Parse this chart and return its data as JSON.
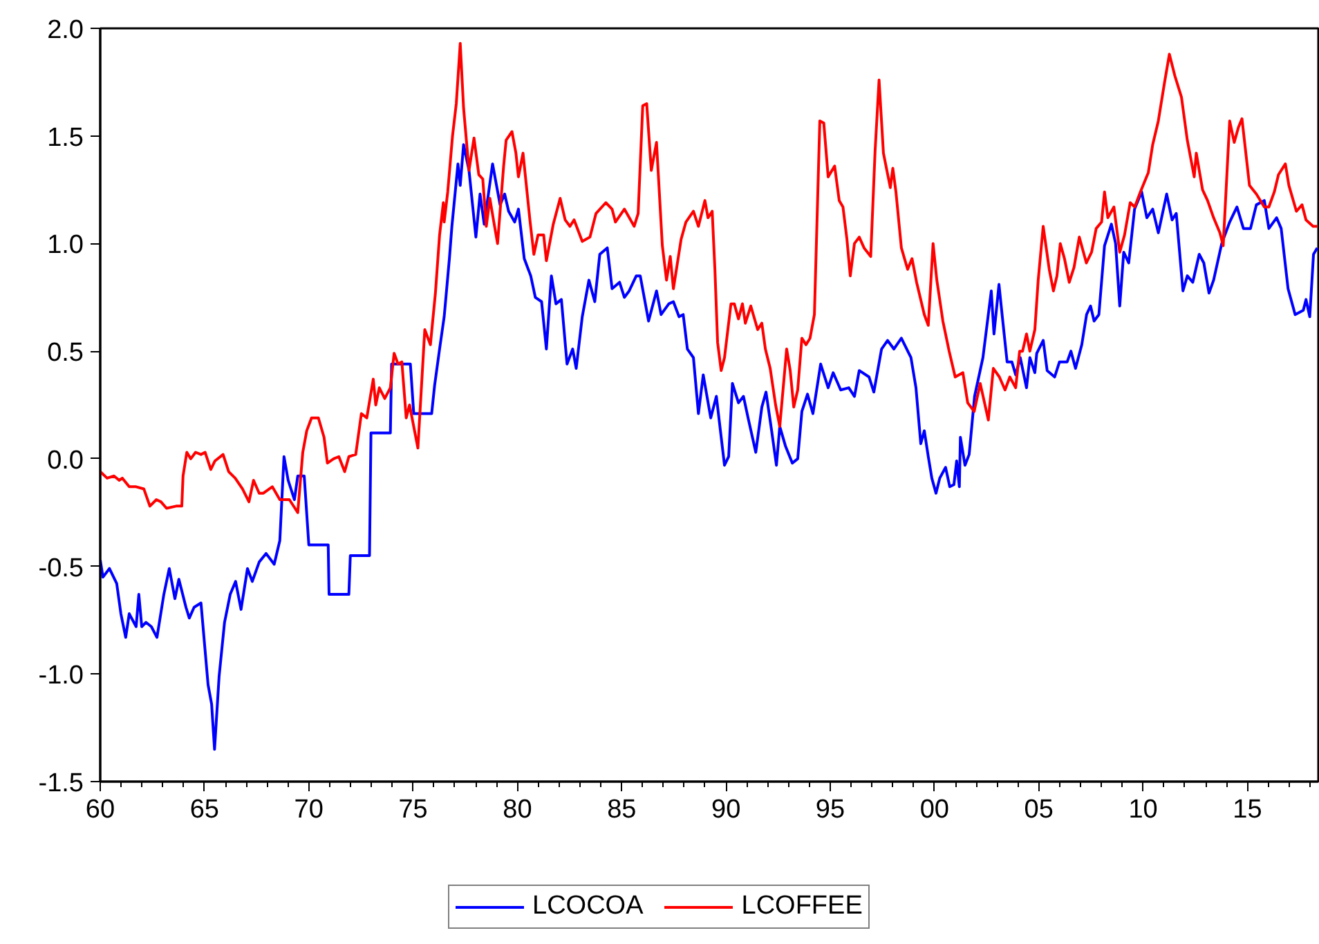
{
  "chart_data": {
    "type": "line",
    "xlim": [
      1960,
      2018.4
    ],
    "ylim": [
      -1.5,
      2.0
    ],
    "xticks": [
      {
        "value": 1960,
        "label": "60"
      },
      {
        "value": 1961,
        "label": null
      },
      {
        "value": 1962,
        "label": null
      },
      {
        "value": 1963,
        "label": null
      },
      {
        "value": 1964,
        "label": null
      },
      {
        "value": 1965,
        "label": "65"
      },
      {
        "value": 1966,
        "label": null
      },
      {
        "value": 1967,
        "label": null
      },
      {
        "value": 1968,
        "label": null
      },
      {
        "value": 1969,
        "label": null
      },
      {
        "value": 1970,
        "label": "70"
      },
      {
        "value": 1971,
        "label": null
      },
      {
        "value": 1972,
        "label": null
      },
      {
        "value": 1973,
        "label": null
      },
      {
        "value": 1974,
        "label": null
      },
      {
        "value": 1975,
        "label": "75"
      },
      {
        "value": 1976,
        "label": null
      },
      {
        "value": 1977,
        "label": null
      },
      {
        "value": 1978,
        "label": null
      },
      {
        "value": 1979,
        "label": null
      },
      {
        "value": 1980,
        "label": "80"
      },
      {
        "value": 1981,
        "label": null
      },
      {
        "value": 1982,
        "label": null
      },
      {
        "value": 1983,
        "label": null
      },
      {
        "value": 1984,
        "label": null
      },
      {
        "value": 1985,
        "label": "85"
      },
      {
        "value": 1986,
        "label": null
      },
      {
        "value": 1987,
        "label": null
      },
      {
        "value": 1988,
        "label": null
      },
      {
        "value": 1989,
        "label": null
      },
      {
        "value": 1990,
        "label": "90"
      },
      {
        "value": 1991,
        "label": null
      },
      {
        "value": 1992,
        "label": null
      },
      {
        "value": 1993,
        "label": null
      },
      {
        "value": 1994,
        "label": null
      },
      {
        "value": 1995,
        "label": "95"
      },
      {
        "value": 1996,
        "label": null
      },
      {
        "value": 1997,
        "label": null
      },
      {
        "value": 1998,
        "label": null
      },
      {
        "value": 1999,
        "label": null
      },
      {
        "value": 2000,
        "label": "00"
      },
      {
        "value": 2001,
        "label": null
      },
      {
        "value": 2002,
        "label": null
      },
      {
        "value": 2003,
        "label": null
      },
      {
        "value": 2004,
        "label": null
      },
      {
        "value": 2005,
        "label": "05"
      },
      {
        "value": 2006,
        "label": null
      },
      {
        "value": 2007,
        "label": null
      },
      {
        "value": 2008,
        "label": null
      },
      {
        "value": 2009,
        "label": null
      },
      {
        "value": 2010,
        "label": "10"
      },
      {
        "value": 2011,
        "label": null
      },
      {
        "value": 2012,
        "label": null
      },
      {
        "value": 2013,
        "label": null
      },
      {
        "value": 2014,
        "label": null
      },
      {
        "value": 2015,
        "label": "15"
      },
      {
        "value": 2016,
        "label": null
      },
      {
        "value": 2017,
        "label": null
      },
      {
        "value": 2018,
        "label": null
      }
    ],
    "yticks": [
      {
        "value": -1.5,
        "label": "-1.5"
      },
      {
        "value": -1.0,
        "label": "-1.0"
      },
      {
        "value": -0.5,
        "label": "-0.5"
      },
      {
        "value": 0,
        "label": "0.0"
      },
      {
        "value": 0.5,
        "label": "0.5"
      },
      {
        "value": 1.0,
        "label": "1.0"
      },
      {
        "value": 1.5,
        "label": "1.5"
      },
      {
        "value": 2.0,
        "label": "2.0"
      }
    ],
    "grid": false,
    "legend": "bottom",
    "marker": "none",
    "line_style": "solid",
    "series": [
      {
        "name": "LCOCOA",
        "color": "#0000ff",
        "x": [
          1960.0,
          1960.13,
          1960.44,
          1960.79,
          1960.99,
          1961.22,
          1961.39,
          1961.72,
          1961.85,
          1961.99,
          1962.19,
          1962.45,
          1962.72,
          1963.05,
          1963.31,
          1963.58,
          1963.77,
          1964.11,
          1964.27,
          1964.5,
          1964.83,
          1965.17,
          1965.34,
          1965.48,
          1965.7,
          1965.96,
          1966.23,
          1966.49,
          1966.75,
          1967.06,
          1967.29,
          1967.62,
          1967.95,
          1968.34,
          1968.61,
          1968.81,
          1969.01,
          1969.31,
          1969.47,
          1969.78,
          1970.0,
          1970.93,
          1970.97,
          1971.92,
          1971.99,
          1972.91,
          1972.98,
          1973.91,
          1973.97,
          1974.87,
          1975.03,
          1975.89,
          1976.03,
          1976.27,
          1976.49,
          1976.74,
          1976.86,
          1977.15,
          1977.26,
          1977.42,
          1977.68,
          1978.01,
          1978.21,
          1978.41,
          1978.81,
          1979.17,
          1979.39,
          1979.58,
          1979.87,
          1980.05,
          1980.33,
          1980.64,
          1980.86,
          1981.16,
          1981.39,
          1981.63,
          1981.85,
          1982.11,
          1982.38,
          1982.65,
          1982.82,
          1983.11,
          1983.43,
          1983.71,
          1983.95,
          1984.31,
          1984.54,
          1984.9,
          1985.13,
          1985.36,
          1985.7,
          1985.89,
          1986.29,
          1986.67,
          1986.89,
          1987.26,
          1987.48,
          1987.75,
          1987.95,
          1988.15,
          1988.44,
          1988.68,
          1988.91,
          1989.27,
          1989.54,
          1989.93,
          1990.13,
          1990.31,
          1990.6,
          1990.84,
          1991.06,
          1991.43,
          1991.72,
          1991.92,
          1992.19,
          1992.42,
          1992.58,
          1992.85,
          1993.18,
          1993.44,
          1993.64,
          1993.91,
          1994.17,
          1994.54,
          1994.9,
          1995.14,
          1995.5,
          1995.89,
          1996.16,
          1996.39,
          1996.86,
          1997.09,
          1997.46,
          1997.75,
          1998.05,
          1998.41,
          1998.87,
          1999.11,
          1999.34,
          1999.51,
          1999.7,
          1999.87,
          2000.07,
          2000.25,
          2000.53,
          2000.73,
          2000.93,
          2001.06,
          2001.19,
          2001.24,
          2001.46,
          2001.66,
          2001.92,
          2002.32,
          2002.72,
          2002.85,
          2003.09,
          2003.25,
          2003.48,
          2003.71,
          2003.89,
          2004.11,
          2004.41,
          2004.57,
          2004.81,
          2004.9,
          2005.21,
          2005.4,
          2005.76,
          2005.99,
          2006.36,
          2006.54,
          2006.76,
          2007.06,
          2007.29,
          2007.48,
          2007.65,
          2007.88,
          2008.15,
          2008.48,
          2008.68,
          2008.88,
          2009.07,
          2009.31,
          2009.59,
          2009.93,
          2010.18,
          2010.46,
          2010.73,
          2011.13,
          2011.39,
          2011.59,
          2011.91,
          2012.12,
          2012.38,
          2012.69,
          2012.91,
          2013.16,
          2013.38,
          2013.77,
          2014.15,
          2014.5,
          2014.81,
          2015.15,
          2015.43,
          2015.81,
          2016.03,
          2016.4,
          2016.62,
          2016.95,
          2017.29,
          2017.68,
          2017.81,
          2017.99,
          2018.17,
          2018.35
        ],
        "values": [
          -0.47,
          -0.55,
          -0.51,
          -0.58,
          -0.72,
          -0.83,
          -0.72,
          -0.78,
          -0.63,
          -0.78,
          -0.76,
          -0.78,
          -0.83,
          -0.63,
          -0.51,
          -0.65,
          -0.56,
          -0.69,
          -0.74,
          -0.69,
          -0.67,
          -1.05,
          -1.14,
          -1.35,
          -1.01,
          -0.76,
          -0.63,
          -0.57,
          -0.7,
          -0.51,
          -0.57,
          -0.48,
          -0.44,
          -0.49,
          -0.38,
          0.01,
          -0.1,
          -0.19,
          -0.08,
          -0.08,
          -0.4,
          -0.4,
          -0.63,
          -0.63,
          -0.45,
          -0.45,
          0.12,
          0.12,
          0.44,
          0.44,
          0.21,
          0.21,
          0.34,
          0.51,
          0.66,
          0.93,
          1.08,
          1.37,
          1.27,
          1.46,
          1.34,
          1.03,
          1.23,
          1.09,
          1.37,
          1.18,
          1.23,
          1.15,
          1.1,
          1.16,
          0.93,
          0.85,
          0.75,
          0.73,
          0.51,
          0.85,
          0.72,
          0.74,
          0.44,
          0.51,
          0.42,
          0.66,
          0.83,
          0.73,
          0.95,
          0.98,
          0.79,
          0.82,
          0.75,
          0.78,
          0.85,
          0.85,
          0.64,
          0.78,
          0.67,
          0.72,
          0.73,
          0.66,
          0.67,
          0.51,
          0.47,
          0.21,
          0.39,
          0.19,
          0.29,
          -0.03,
          0.01,
          0.35,
          0.26,
          0.29,
          0.19,
          0.03,
          0.24,
          0.31,
          0.13,
          -0.03,
          0.15,
          0.06,
          -0.02,
          0.0,
          0.22,
          0.3,
          0.21,
          0.44,
          0.33,
          0.4,
          0.32,
          0.33,
          0.29,
          0.41,
          0.38,
          0.31,
          0.51,
          0.55,
          0.51,
          0.56,
          0.47,
          0.33,
          0.07,
          0.13,
          0.01,
          -0.09,
          -0.16,
          -0.09,
          -0.04,
          -0.13,
          -0.12,
          -0.01,
          -0.13,
          0.1,
          -0.03,
          0.02,
          0.29,
          0.47,
          0.78,
          0.58,
          0.81,
          0.66,
          0.45,
          0.45,
          0.39,
          0.47,
          0.33,
          0.47,
          0.4,
          0.49,
          0.55,
          0.41,
          0.38,
          0.45,
          0.45,
          0.5,
          0.42,
          0.53,
          0.67,
          0.71,
          0.64,
          0.67,
          0.99,
          1.09,
          1.0,
          0.71,
          0.96,
          0.91,
          1.16,
          1.24,
          1.12,
          1.16,
          1.05,
          1.23,
          1.11,
          1.14,
          0.78,
          0.85,
          0.82,
          0.95,
          0.91,
          0.77,
          0.83,
          1.0,
          1.1,
          1.17,
          1.07,
          1.07,
          1.18,
          1.2,
          1.07,
          1.12,
          1.07,
          0.79,
          0.67,
          0.69,
          0.74,
          0.66,
          0.95,
          0.98
        ]
      },
      {
        "name": "LCOFFEE",
        "color": "#ff0000",
        "x": [
          1960.0,
          1960.33,
          1960.66,
          1960.91,
          1961.06,
          1961.39,
          1961.72,
          1962.09,
          1962.38,
          1962.69,
          1962.91,
          1963.18,
          1963.64,
          1963.91,
          1963.97,
          1964.15,
          1964.34,
          1964.57,
          1964.83,
          1965.03,
          1965.3,
          1965.5,
          1965.89,
          1966.16,
          1966.47,
          1966.82,
          1967.13,
          1967.35,
          1967.62,
          1967.82,
          1968.25,
          1968.61,
          1969.07,
          1969.47,
          1969.71,
          1969.9,
          1970.13,
          1970.46,
          1970.73,
          1970.89,
          1971.19,
          1971.44,
          1971.72,
          1971.92,
          1972.25,
          1972.52,
          1972.78,
          1973.09,
          1973.21,
          1973.38,
          1973.64,
          1973.91,
          1974.09,
          1974.28,
          1974.46,
          1974.67,
          1974.83,
          1975.23,
          1975.56,
          1975.83,
          1976.07,
          1976.27,
          1976.45,
          1976.49,
          1976.66,
          1976.89,
          1977.07,
          1977.26,
          1977.42,
          1977.68,
          1977.92,
          1978.15,
          1978.34,
          1978.51,
          1978.68,
          1978.87,
          1979.05,
          1979.34,
          1979.46,
          1979.74,
          1979.93,
          1980.05,
          1980.27,
          1980.6,
          1980.79,
          1980.99,
          1981.26,
          1981.39,
          1981.72,
          1982.05,
          1982.29,
          1982.52,
          1982.72,
          1983.11,
          1983.48,
          1983.77,
          1984.24,
          1984.54,
          1984.7,
          1985.13,
          1985.6,
          1985.79,
          1986.01,
          1986.2,
          1986.42,
          1986.67,
          1986.95,
          1987.15,
          1987.33,
          1987.48,
          1987.85,
          1988.08,
          1988.44,
          1988.68,
          1988.99,
          1989.14,
          1989.34,
          1989.47,
          1989.6,
          1989.77,
          1989.93,
          1990.24,
          1990.4,
          1990.6,
          1990.79,
          1990.93,
          1991.19,
          1991.52,
          1991.72,
          1991.89,
          1992.12,
          1992.38,
          1992.58,
          1992.91,
          1993.08,
          1993.25,
          1993.44,
          1993.64,
          1993.84,
          1994.03,
          1994.24,
          1994.5,
          1994.69,
          1994.9,
          1995.21,
          1995.43,
          1995.61,
          1995.8,
          1995.96,
          1996.16,
          1996.39,
          1996.62,
          1996.94,
          1997.15,
          1997.34,
          1997.55,
          1997.88,
          1998.0,
          1998.15,
          1998.41,
          1998.71,
          1998.92,
          1999.14,
          1999.51,
          1999.7,
          1999.93,
          2000.11,
          2000.4,
          2000.7,
          2000.99,
          2001.36,
          2001.59,
          2001.9,
          2002.19,
          2002.58,
          2002.82,
          2003.11,
          2003.38,
          2003.61,
          2003.89,
          2004.08,
          2004.22,
          2004.41,
          2004.57,
          2004.81,
          2004.97,
          2005.21,
          2005.5,
          2005.7,
          2005.87,
          2006.03,
          2006.23,
          2006.46,
          2006.69,
          2006.94,
          2007.28,
          2007.53,
          2007.75,
          2008.01,
          2008.15,
          2008.31,
          2008.6,
          2008.88,
          2009.11,
          2009.38,
          2009.6,
          2009.87,
          2010.25,
          2010.46,
          2010.73,
          2011.03,
          2011.26,
          2011.52,
          2011.84,
          2012.12,
          2012.45,
          2012.55,
          2012.85,
          2013.09,
          2013.38,
          2013.68,
          2013.84,
          2014.15,
          2014.37,
          2014.57,
          2014.74,
          2015.1,
          2015.43,
          2015.81,
          2016.03,
          2016.29,
          2016.49,
          2016.82,
          2016.99,
          2017.35,
          2017.62,
          2017.81,
          2018.15,
          2018.35
        ],
        "values": [
          -0.06,
          -0.09,
          -0.08,
          -0.1,
          -0.09,
          -0.13,
          -0.13,
          -0.14,
          -0.22,
          -0.19,
          -0.2,
          -0.23,
          -0.22,
          -0.22,
          -0.08,
          0.03,
          0.0,
          0.03,
          0.02,
          0.03,
          -0.05,
          -0.01,
          0.02,
          -0.06,
          -0.09,
          -0.14,
          -0.2,
          -0.1,
          -0.16,
          -0.16,
          -0.13,
          -0.19,
          -0.19,
          -0.25,
          0.03,
          0.13,
          0.19,
          0.19,
          0.1,
          -0.02,
          0.0,
          0.01,
          -0.06,
          0.01,
          0.02,
          0.21,
          0.19,
          0.37,
          0.25,
          0.33,
          0.28,
          0.33,
          0.49,
          0.44,
          0.45,
          0.19,
          0.25,
          0.05,
          0.6,
          0.53,
          0.77,
          1.04,
          1.19,
          1.1,
          1.24,
          1.5,
          1.65,
          1.93,
          1.63,
          1.34,
          1.49,
          1.32,
          1.3,
          1.08,
          1.21,
          1.1,
          1.0,
          1.36,
          1.48,
          1.52,
          1.42,
          1.31,
          1.42,
          1.11,
          0.95,
          1.04,
          1.04,
          0.92,
          1.09,
          1.21,
          1.11,
          1.08,
          1.11,
          1.01,
          1.03,
          1.14,
          1.19,
          1.16,
          1.1,
          1.16,
          1.08,
          1.14,
          1.64,
          1.65,
          1.34,
          1.47,
          0.99,
          0.83,
          0.94,
          0.79,
          1.02,
          1.1,
          1.15,
          1.08,
          1.2,
          1.12,
          1.15,
          0.88,
          0.54,
          0.41,
          0.47,
          0.72,
          0.72,
          0.65,
          0.72,
          0.63,
          0.71,
          0.6,
          0.63,
          0.51,
          0.42,
          0.25,
          0.15,
          0.51,
          0.41,
          0.24,
          0.32,
          0.56,
          0.53,
          0.56,
          0.67,
          1.57,
          1.56,
          1.31,
          1.36,
          1.2,
          1.17,
          1.02,
          0.85,
          1.0,
          1.03,
          0.98,
          0.94,
          1.43,
          1.76,
          1.42,
          1.26,
          1.35,
          1.24,
          0.98,
          0.88,
          0.93,
          0.82,
          0.67,
          0.62,
          1.0,
          0.83,
          0.64,
          0.5,
          0.38,
          0.4,
          0.26,
          0.22,
          0.35,
          0.18,
          0.42,
          0.38,
          0.32,
          0.38,
          0.33,
          0.5,
          0.5,
          0.58,
          0.5,
          0.6,
          0.83,
          1.08,
          0.88,
          0.78,
          0.85,
          1.0,
          0.93,
          0.82,
          0.89,
          1.03,
          0.91,
          0.96,
          1.07,
          1.1,
          1.24,
          1.12,
          1.17,
          0.96,
          1.04,
          1.19,
          1.17,
          1.24,
          1.33,
          1.46,
          1.57,
          1.75,
          1.88,
          1.78,
          1.68,
          1.48,
          1.31,
          1.42,
          1.25,
          1.2,
          1.12,
          1.05,
          0.99,
          1.57,
          1.47,
          1.54,
          1.58,
          1.27,
          1.23,
          1.17,
          1.17,
          1.24,
          1.32,
          1.37,
          1.27,
          1.15,
          1.18,
          1.11,
          1.08,
          1.08
        ]
      }
    ]
  }
}
